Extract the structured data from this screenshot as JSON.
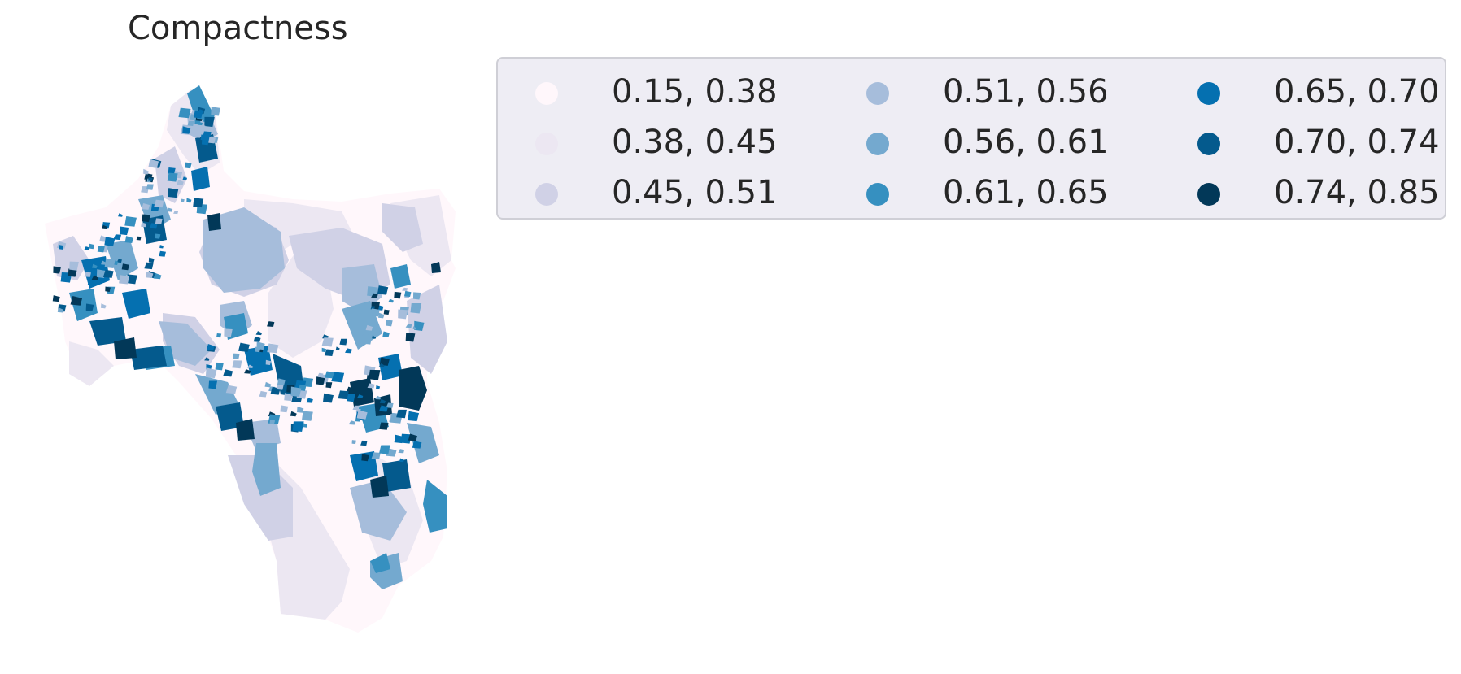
{
  "map": {
    "title": "Compactness"
  },
  "legend": {
    "placement": "upper-right of map",
    "columns": 3,
    "items": [
      {
        "label": "0.15, 0.38",
        "color": "#fff7fb"
      },
      {
        "label": "0.38, 0.45",
        "color": "#ece7f2"
      },
      {
        "label": "0.45, 0.51",
        "color": "#d0d1e6"
      },
      {
        "label": "0.51, 0.56",
        "color": "#a6bddb"
      },
      {
        "label": "0.56, 0.61",
        "color": "#74a9cf"
      },
      {
        "label": "0.61, 0.65",
        "color": "#3690c0"
      },
      {
        "label": "0.65, 0.70",
        "color": "#0570b0"
      },
      {
        "label": "0.70, 0.74",
        "color": "#045a8d"
      },
      {
        "label": "0.74, 0.85",
        "color": "#023858"
      }
    ]
  }
}
